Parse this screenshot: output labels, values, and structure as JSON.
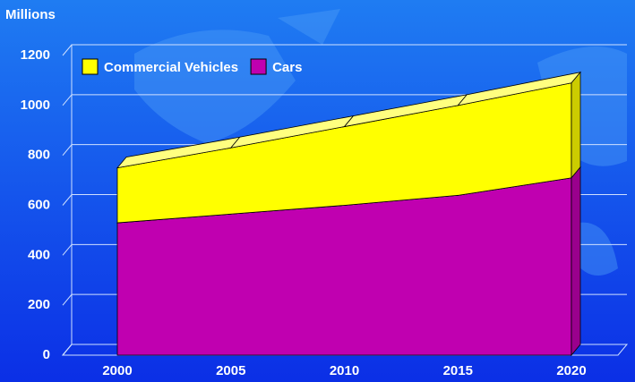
{
  "chart_data": {
    "type": "area",
    "stacked": true,
    "y_axis_label": "Millions",
    "categories": [
      "2000",
      "2005",
      "2010",
      "2015",
      "2020"
    ],
    "series": [
      {
        "name": "Cars",
        "color": "#c000b0",
        "values": [
          530,
          565,
          600,
          640,
          710
        ]
      },
      {
        "name": "Commercial Vehicles",
        "color": "#ffff00",
        "values": [
          220,
          265,
          315,
          360,
          380
        ]
      }
    ],
    "ylim": [
      0,
      1200
    ],
    "yticks": [
      0,
      200,
      400,
      600,
      800,
      1000,
      1200
    ],
    "grid": true,
    "legend": "top"
  }
}
